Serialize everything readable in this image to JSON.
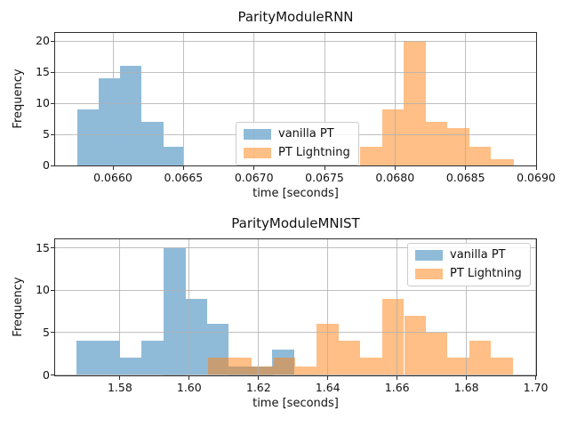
{
  "legend_entries": [
    {
      "label": "vanilla PT"
    },
    {
      "label": "PT Lightning"
    }
  ],
  "chart_data": [
    {
      "type": "histogram",
      "title": "ParityModuleRNN",
      "xlabel": "time [seconds]",
      "ylabel": "Frequency",
      "xlim": [
        0.06559,
        0.069
      ],
      "ylim": [
        0,
        21.3
      ],
      "grid": true,
      "legend_position": "center",
      "xtick_values": [
        0.066,
        0.0665,
        0.067,
        0.0675,
        0.068,
        0.0685,
        0.069
      ],
      "xtick_labels": [
        "0.0660",
        "0.0665",
        "0.0670",
        "0.0675",
        "0.0680",
        "0.0685",
        "0.0690"
      ],
      "ytick_values": [
        0,
        5,
        10,
        15,
        20
      ],
      "ytick_labels": [
        "0",
        "5",
        "10",
        "15",
        "20"
      ],
      "series": [
        {
          "name": "vanilla PT",
          "color": "#1f77b4",
          "alpha": 0.5,
          "bin_edges": [
            0.06575,
            0.0659,
            0.06605,
            0.0662,
            0.06636,
            0.0665
          ],
          "counts": [
            9,
            14,
            16,
            7,
            3
          ]
        },
        {
          "name": "PT Lightning",
          "color": "#ff7f0e",
          "alpha": 0.5,
          "bin_edges": [
            0.06775,
            0.06791,
            0.06806,
            0.06822,
            0.06837,
            0.06853,
            0.06868,
            0.06884
          ],
          "counts": [
            3,
            9,
            20,
            7,
            6,
            3,
            1
          ]
        }
      ]
    },
    {
      "type": "histogram",
      "title": "ParityModuleMNIST",
      "xlabel": "time [seconds]",
      "ylabel": "Frequency",
      "xlim": [
        1.5613,
        1.7001
      ],
      "ylim": [
        0,
        16.05
      ],
      "grid": true,
      "legend_position": "upper right",
      "xtick_values": [
        1.58,
        1.6,
        1.62,
        1.64,
        1.66,
        1.68,
        1.7
      ],
      "xtick_labels": [
        "1.58",
        "1.60",
        "1.62",
        "1.64",
        "1.66",
        "1.68",
        "1.70"
      ],
      "ytick_values": [
        0,
        5,
        10,
        15
      ],
      "ytick_labels": [
        "0",
        "5",
        "10",
        "15"
      ],
      "series": [
        {
          "name": "vanilla PT",
          "color": "#1f77b4",
          "alpha": 0.5,
          "bin_edges": [
            1.5675,
            1.5737,
            1.58,
            1.5863,
            1.5926,
            1.5989,
            1.6052,
            1.6114,
            1.6177,
            1.624,
            1.6303
          ],
          "counts": [
            4,
            4,
            2,
            4,
            15,
            9,
            6,
            1,
            1,
            3
          ]
        },
        {
          "name": "PT Lightning",
          "color": "#ff7f0e",
          "alpha": 0.5,
          "bin_edges": [
            1.6054,
            1.6117,
            1.618,
            1.6243,
            1.6306,
            1.6368,
            1.6431,
            1.6494,
            1.6557,
            1.662,
            1.6683,
            1.6745,
            1.6808,
            1.6871,
            1.6934
          ],
          "counts": [
            2,
            2,
            1,
            2,
            1,
            6,
            4,
            2,
            9,
            7,
            5,
            2,
            4,
            2
          ]
        }
      ]
    }
  ]
}
